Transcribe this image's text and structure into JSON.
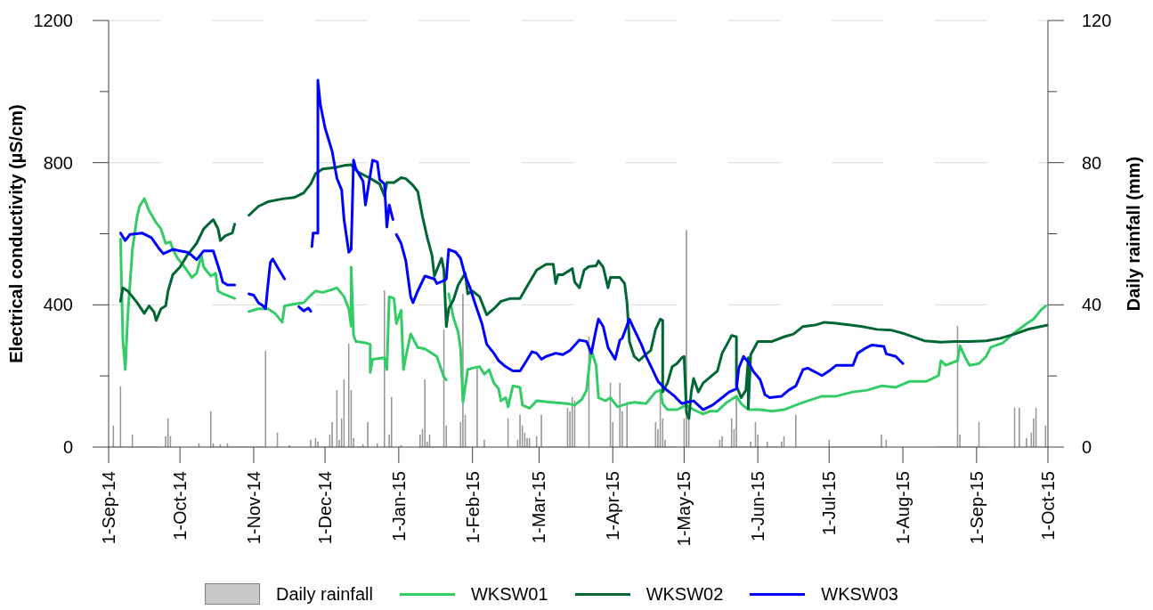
{
  "chart_data": {
    "type": "line",
    "xlim": [
      "2014-09-01",
      "2015-10-01"
    ],
    "xticks": [
      {
        "value": "2014-09-01",
        "label": "1-Sep-14"
      },
      {
        "value": "2014-10-01",
        "label": "1-Oct-14"
      },
      {
        "value": "2014-11-01",
        "label": "1-Nov-14"
      },
      {
        "value": "2014-12-01",
        "label": "1-Dec-14"
      },
      {
        "value": "2015-01-01",
        "label": "1-Jan-15"
      },
      {
        "value": "2015-02-01",
        "label": "1-Feb-15"
      },
      {
        "value": "2015-03-01",
        "label": "1-Mar-15"
      },
      {
        "value": "2015-04-01",
        "label": "1-Apr-15"
      },
      {
        "value": "2015-05-01",
        "label": "1-May-15"
      },
      {
        "value": "2015-06-01",
        "label": "1-Jun-15"
      },
      {
        "value": "2015-07-01",
        "label": "1-Jul-15"
      },
      {
        "value": "2015-08-01",
        "label": "1-Aug-15"
      },
      {
        "value": "2015-09-01",
        "label": "1-Sep-15"
      },
      {
        "value": "2015-10-01",
        "label": "1-Oct-15"
      }
    ],
    "ylabel": "Electrical conductivity (µS/cm)",
    "y2label": "Daily rainfall (mm)",
    "ylim": [
      0,
      1200
    ],
    "yticks": [
      0,
      {
        "value": 200,
        "label": null
      },
      400,
      {
        "value": 600,
        "label": null
      },
      800,
      {
        "value": 1000,
        "label": null
      },
      1200
    ],
    "y2lim": [
      0,
      120
    ],
    "y2ticks": [
      0,
      {
        "value": 20,
        "label": null
      },
      40,
      {
        "value": 60,
        "label": null
      },
      80,
      {
        "value": 100,
        "label": null
      },
      120
    ],
    "grid": "y",
    "legend": "bottom",
    "series": [
      {
        "name": "Daily rainfall",
        "type": "bar",
        "axis": "y2",
        "color": "#c8c8c8",
        "x": [
          "2014-09-03",
          "2014-09-06",
          "2014-09-11",
          "2014-09-25",
          "2014-09-26",
          "2014-09-27",
          "2014-10-09",
          "2014-10-14",
          "2014-10-15",
          "2014-10-18",
          "2014-10-21",
          "2014-11-06",
          "2014-11-11",
          "2014-11-16",
          "2014-11-25",
          "2014-11-27",
          "2014-11-28",
          "2014-12-03",
          "2014-12-04",
          "2014-12-06",
          "2014-12-07",
          "2014-12-08",
          "2014-12-09",
          "2014-12-11",
          "2014-12-12",
          "2014-12-13",
          "2014-12-17",
          "2014-12-19",
          "2014-12-23",
          "2014-12-26",
          "2014-12-28",
          "2014-12-29",
          "2015-01-02",
          "2015-01-10",
          "2015-01-11",
          "2015-01-12",
          "2015-01-13",
          "2015-01-14",
          "2015-01-20",
          "2015-01-21",
          "2015-01-27",
          "2015-01-28",
          "2015-01-29",
          "2015-02-03",
          "2015-02-06",
          "2015-02-16",
          "2015-02-20",
          "2015-02-21",
          "2015-02-22",
          "2015-02-23",
          "2015-02-24",
          "2015-02-25",
          "2015-02-28",
          "2015-03-02",
          "2015-03-13",
          "2015-03-14",
          "2015-03-15",
          "2015-03-16",
          "2015-03-22",
          "2015-03-31",
          "2015-04-01",
          "2015-04-04",
          "2015-04-05",
          "2015-04-07",
          "2015-04-19",
          "2015-04-20",
          "2015-04-21",
          "2015-04-22",
          "2015-04-23",
          "2015-05-01",
          "2015-05-02",
          "2015-05-03",
          "2015-05-16",
          "2015-05-17",
          "2015-05-21",
          "2015-05-22",
          "2015-05-23",
          "2015-05-29",
          "2015-05-31",
          "2015-06-01",
          "2015-06-05",
          "2015-06-11",
          "2015-06-12",
          "2015-06-17",
          "2015-07-01",
          "2015-07-23",
          "2015-07-25",
          "2015-08-24",
          "2015-08-25",
          "2015-09-02",
          "2015-09-17",
          "2015-09-19",
          "2015-09-22",
          "2015-09-24",
          "2015-09-25",
          "2015-09-26",
          "2015-09-30"
        ],
        "values": [
          6,
          17,
          3.5,
          3,
          8,
          3,
          1,
          10,
          1,
          0.7,
          1,
          27,
          4,
          0.5,
          2,
          2.5,
          1.5,
          3.5,
          7,
          16,
          2,
          8,
          19,
          29,
          16,
          2.5,
          0.7,
          7,
          1,
          44,
          3.5,
          14,
          0.5,
          3.5,
          5,
          19,
          1.5,
          3.5,
          33,
          6,
          7,
          43,
          9,
          22,
          2,
          8,
          2,
          9,
          6,
          4,
          2.5,
          2.5,
          3,
          9,
          11,
          10,
          14,
          13,
          31,
          18,
          7,
          18,
          10,
          12,
          7,
          5,
          16,
          8,
          2,
          8,
          61,
          8,
          2,
          3,
          8,
          5,
          14,
          1.5,
          7,
          3.5,
          1.5,
          1.5,
          3,
          9,
          2,
          3.5,
          2,
          34,
          3.5,
          7,
          11,
          11,
          2.5,
          4,
          8,
          11,
          6
        ]
      },
      {
        "name": "WKSW01",
        "color": "#33cc66",
        "x": [
          "2014-09-06",
          "2014-09-07",
          "2014-09-08",
          "2014-09-09",
          "2014-09-11",
          "2014-09-13",
          "2014-09-14",
          "2014-09-16",
          "2014-09-18",
          "2014-09-21",
          "2014-09-23",
          "2014-09-25",
          "2014-09-27",
          "2014-09-28",
          "2014-09-30",
          "2014-10-03",
          "2014-10-06",
          "2014-10-08",
          "2014-10-10",
          "2014-10-11",
          "2014-10-14",
          "2014-10-16",
          "2014-10-17",
          "2014-10-19",
          "2014-10-24",
          "2014-10-27",
          "2014-10-30",
          "2014-11-03",
          "2014-11-07",
          "2014-11-10",
          "2014-11-13",
          "2014-11-14",
          "2014-11-18",
          "2014-11-22",
          "2014-11-25",
          "2014-11-27",
          "2014-11-30",
          "2014-12-04",
          "2014-12-06",
          "2014-12-09",
          "2014-12-11",
          "2014-12-12",
          "2014-12-12",
          "2014-12-13",
          "2014-12-14",
          "2014-12-18",
          "2014-12-20",
          "2014-12-20",
          "2014-12-21",
          "2014-12-26",
          "2014-12-27",
          "2014-12-28",
          "2014-12-30",
          "2014-12-31",
          "2015-01-02",
          "2015-01-03",
          "2015-01-04",
          "2015-01-06",
          "2015-01-09",
          "2015-01-12",
          "2015-01-17",
          "2015-01-20",
          "2015-01-21",
          "2015-01-21T12:00",
          "2015-01-22",
          "2015-01-24",
          "2015-01-26",
          "2015-01-27",
          "2015-01-28",
          "2015-01-30",
          "2015-02-01",
          "2015-02-04",
          "2015-02-06",
          "2015-02-08",
          "2015-02-10",
          "2015-02-12",
          "2015-02-13",
          "2015-02-15",
          "2015-02-16",
          "2015-02-18",
          "2015-02-21",
          "2015-02-22",
          "2015-02-25",
          "2015-02-28",
          "2015-03-06",
          "2015-03-13",
          "2015-03-16",
          "2015-03-19",
          "2015-03-21",
          "2015-03-22",
          "2015-03-23",
          "2015-03-25",
          "2015-03-26",
          "2015-03-29",
          "2015-03-31",
          "2015-04-03",
          "2015-04-07",
          "2015-04-10",
          "2015-04-15",
          "2015-04-19",
          "2015-04-21",
          "2015-04-22",
          "2015-04-24",
          "2015-04-28",
          "2015-05-02",
          "2015-05-05",
          "2015-05-09",
          "2015-05-12",
          "2015-05-15",
          "2015-05-19",
          "2015-05-23",
          "2015-05-25",
          "2015-05-28",
          "2015-06-02",
          "2015-06-07",
          "2015-06-12",
          "2015-06-17",
          "2015-06-22",
          "2015-06-28",
          "2015-07-04",
          "2015-07-11",
          "2015-07-17",
          "2015-07-23",
          "2015-07-29",
          "2015-08-04",
          "2015-08-11",
          "2015-08-16",
          "2015-08-17",
          "2015-08-19",
          "2015-08-24",
          "2015-08-25",
          "2015-08-27",
          "2015-08-29",
          "2015-09-02",
          "2015-09-05",
          "2015-09-07",
          "2015-09-12",
          "2015-09-17",
          "2015-09-22",
          "2015-09-25",
          "2015-09-28",
          "2015-09-30"
        ],
        "values": [
          585,
          300,
          218,
          364,
          556,
          649,
          677,
          699,
          665,
          631,
          614,
          573,
          577,
          556,
          531,
          506,
          477,
          489,
          539,
          506,
          481,
          489,
          439,
          431,
          418,
          null,
          381,
          389,
          389,
          376,
          351,
          397,
          402,
          406,
          427,
          439,
          435,
          443,
          448,
          423,
          389,
          340,
          506,
          314,
          297,
          293,
          289,
          210,
          247,
          251,
          218,
          423,
          418,
          347,
          385,
          218,
          255,
          318,
          280,
          276,
          255,
          197,
          189,
          null,
          431,
          364,
          323,
          276,
          126,
          218,
          222,
          226,
          205,
          218,
          180,
          164,
          130,
          139,
          113,
          172,
          168,
          118,
          109,
          130,
          126,
          122,
          118,
          134,
          160,
          222,
          272,
          230,
          139,
          130,
          139,
          113,
          122,
          126,
          122,
          155,
          160,
          122,
          105,
          105,
          118,
          105,
          93,
          101,
          101,
          126,
          143,
          122,
          105,
          105,
          101,
          105,
          118,
          130,
          143,
          143,
          155,
          160,
          172,
          168,
          185,
          185,
          201,
          243,
          230,
          243,
          285,
          255,
          230,
          235,
          255,
          281,
          293,
          322,
          347,
          360,
          385,
          397
        ]
      },
      {
        "name": "WKSW02",
        "color": "#006633",
        "x": [
          "2014-09-06",
          "2014-09-07",
          "2014-09-09",
          "2014-09-11",
          "2014-09-13",
          "2014-09-16",
          "2014-09-18",
          "2014-09-20",
          "2014-09-21",
          "2014-09-23",
          "2014-09-25",
          "2014-09-26",
          "2014-09-28",
          "2014-10-01",
          "2014-10-04",
          "2014-10-08",
          "2014-10-11",
          "2014-10-15",
          "2014-10-17",
          "2014-10-18",
          "2014-10-20",
          "2014-10-23",
          "2014-10-24",
          "2014-10-27",
          "2014-10-30",
          "2014-11-03",
          "2014-11-07",
          "2014-11-13",
          "2014-11-18",
          "2014-11-22",
          "2014-11-25",
          "2014-11-27",
          "2014-11-30",
          "2014-12-05",
          "2014-12-09",
          "2014-12-12",
          "2014-12-15",
          "2014-12-20",
          "2014-12-24",
          "2014-12-26",
          "2014-12-27",
          "2014-12-30",
          "2015-01-02",
          "2015-01-04",
          "2015-01-07",
          "2015-01-09",
          "2015-01-11",
          "2015-01-13",
          "2015-01-15",
          "2015-01-16",
          "2015-01-17",
          "2015-01-19",
          "2015-01-20",
          "2015-01-21",
          "2015-01-22",
          "2015-01-24",
          "2015-01-26",
          "2015-01-29",
          "2015-01-30",
          "2015-02-01",
          "2015-02-04",
          "2015-02-07",
          "2015-02-10",
          "2015-02-13",
          "2015-02-17",
          "2015-02-21",
          "2015-02-25",
          "2015-02-28",
          "2015-03-04",
          "2015-03-07",
          "2015-03-08",
          "2015-03-09",
          "2015-03-11",
          "2015-03-15",
          "2015-03-16",
          "2015-03-18",
          "2015-03-20",
          "2015-03-22",
          "2015-03-25",
          "2015-03-26",
          "2015-03-28",
          "2015-03-30",
          "2015-03-31",
          "2015-04-04",
          "2015-04-06",
          "2015-04-07",
          "2015-04-08",
          "2015-04-10",
          "2015-04-12",
          "2015-04-14",
          "2015-04-17",
          "2015-04-19",
          "2015-04-21",
          "2015-04-22",
          "2015-04-22",
          "2015-04-24",
          "2015-04-26",
          "2015-04-28",
          "2015-04-30",
          "2015-05-01",
          "2015-05-02",
          "2015-05-03",
          "2015-05-04",
          "2015-05-05",
          "2015-05-07",
          "2015-05-09",
          "2015-05-12",
          "2015-05-15",
          "2015-05-17",
          "2015-05-20",
          "2015-05-21",
          "2015-05-23",
          "2015-05-23",
          "2015-05-25",
          "2015-05-27",
          "2015-05-28",
          "2015-05-28",
          "2015-05-29",
          "2015-06-01",
          "2015-06-07",
          "2015-06-12",
          "2015-06-16",
          "2015-06-20",
          "2015-06-25",
          "2015-06-29",
          "2015-07-03",
          "2015-07-10",
          "2015-07-15",
          "2015-07-21",
          "2015-07-27",
          "2015-08-02",
          "2015-08-10",
          "2015-08-17",
          "2015-08-23",
          "2015-08-29",
          "2015-09-05",
          "2015-09-11",
          "2015-09-17",
          "2015-09-23",
          "2015-10-01"
        ],
        "values": [
          410,
          448,
          439,
          423,
          406,
          376,
          397,
          381,
          356,
          389,
          397,
          439,
          485,
          506,
          539,
          573,
          614,
          640,
          614,
          581,
          594,
          602,
          627,
          null,
          652,
          677,
          690,
          698,
          702,
          715,
          740,
          769,
          782,
          786,
          792,
          794,
          773,
          756,
          740,
          706,
          744,
          744,
          758,
          755,
          736,
          719,
          648,
          589,
          539,
          481,
          498,
          531,
          498,
          339,
          389,
          414,
          456,
          489,
          431,
          439,
          423,
          372,
          389,
          410,
          418,
          418,
          464,
          498,
          514,
          514,
          460,
          485,
          485,
          502,
          464,
          448,
          498,
          508,
          510,
          524,
          506,
          448,
          477,
          477,
          460,
          406,
          297,
          255,
          243,
          255,
          272,
          331,
          360,
          356,
          155,
          180,
          226,
          235,
          251,
          255,
          97,
          80,
          155,
          193,
          155,
          180,
          197,
          214,
          264,
          301,
          314,
          310,
          172,
          139,
          160,
          251,
          109,
          260,
          297,
          297,
          310,
          318,
          339,
          343,
          351,
          349,
          343,
          339,
          331,
          329,
          318,
          299,
          295,
          297,
          297,
          299,
          306,
          318,
          332,
          343
        ]
      },
      {
        "name": "WKSW03",
        "color": "#0000ff",
        "x": [
          "2014-09-06",
          "2014-09-08",
          "2014-09-10",
          "2014-09-15",
          "2014-09-19",
          "2014-09-22",
          "2014-09-24",
          "2014-09-28",
          "2014-10-01",
          "2014-10-04",
          "2014-10-06",
          "2014-10-08",
          "2014-10-11",
          "2014-10-15",
          "2014-10-16",
          "2014-10-18",
          "2014-10-19",
          "2014-10-21",
          "2014-10-24",
          "2014-10-27",
          "2014-10-30",
          "2014-11-01",
          "2014-11-03",
          "2014-11-05",
          "2014-11-06",
          "2014-11-07",
          "2014-11-08",
          "2014-11-09",
          "2014-11-11",
          "2014-11-14",
          "2014-11-16",
          "2014-11-20",
          "2014-11-22",
          "2014-11-24",
          "2014-11-25",
          "2014-11-25T06:00",
          "2014-11-25T12:00",
          "2014-11-26",
          "2014-11-28",
          "2014-11-28",
          "2014-11-29",
          "2014-12-01",
          "2014-12-04",
          "2014-12-06",
          "2014-12-08",
          "2014-12-09",
          "2014-12-11",
          "2014-12-12",
          "2014-12-13",
          "2014-12-14",
          "2014-12-17",
          "2014-12-18",
          "2014-12-20",
          "2014-12-21",
          "2014-12-23",
          "2014-12-24",
          "2014-12-26",
          "2014-12-27",
          "2014-12-28",
          "2014-12-29T14:00",
          "2014-12-30T12:00",
          "2014-12-31",
          "2015-01-02",
          "2015-01-04",
          "2015-01-05",
          "2015-01-06",
          "2015-01-07",
          "2015-01-09",
          "2015-01-12",
          "2015-01-16",
          "2015-01-17",
          "2015-01-20",
          "2015-01-21",
          "2015-01-22",
          "2015-01-25",
          "2015-01-27",
          "2015-01-29",
          "2015-01-31",
          "2015-02-02",
          "2015-02-05",
          "2015-02-07",
          "2015-02-10",
          "2015-02-12",
          "2015-02-15",
          "2015-02-18",
          "2015-02-21",
          "2015-02-23",
          "2015-02-26",
          "2015-02-28",
          "2015-03-02",
          "2015-03-04",
          "2015-03-08",
          "2015-03-11",
          "2015-03-14",
          "2015-03-18",
          "2015-03-21",
          "2015-03-23",
          "2015-03-25",
          "2015-03-26",
          "2015-03-28",
          "2015-03-30",
          "2015-04-02",
          "2015-04-04",
          "2015-04-05",
          "2015-04-08",
          "2015-04-10",
          "2015-04-13",
          "2015-04-15",
          "2015-04-18",
          "2015-04-20",
          "2015-04-23",
          "2015-04-27",
          "2015-04-30",
          "2015-05-02",
          "2015-05-05",
          "2015-05-09",
          "2015-05-13",
          "2015-05-17",
          "2015-05-20",
          "2015-05-23",
          "2015-05-24",
          "2015-05-26",
          "2015-05-28",
          "2015-05-30",
          "2015-06-02",
          "2015-06-04",
          "2015-06-06",
          "2015-06-11",
          "2015-06-14",
          "2015-06-17",
          "2015-06-20",
          "2015-06-22",
          "2015-06-28",
          "2015-07-01",
          "2015-07-04",
          "2015-07-11",
          "2015-07-13",
          "2015-07-16",
          "2015-07-19",
          "2015-07-24",
          "2015-07-25",
          "2015-07-29",
          "2015-08-01"
        ],
        "values": [
          602,
          581,
          598,
          602,
          589,
          560,
          544,
          556,
          552,
          548,
          539,
          527,
          552,
          552,
          531,
          489,
          464,
          456,
          456,
          null,
          431,
          427,
          406,
          397,
          389,
          456,
          519,
          529,
          506,
          473,
          null,
          395,
          383,
          391,
          382,
          null,
          564,
          602,
          602,
          1032,
          965,
          898,
          832,
          756,
          723,
          640,
          548,
          556,
          807,
          782,
          748,
          681,
          765,
          807,
          802,
          752,
          740,
          619,
          681,
          640,
          null,
          598,
          573,
          523,
          473,
          423,
          406,
          439,
          481,
          473,
          460,
          468,
          473,
          556,
          548,
          531,
          481,
          448,
          406,
          347,
          289,
          264,
          243,
          226,
          214,
          214,
          235,
          268,
          264,
          247,
          255,
          264,
          260,
          272,
          301,
          297,
          264,
          331,
          360,
          339,
          280,
          247,
          301,
          306,
          360,
          331,
          289,
          255,
          214,
          185,
          164,
          143,
          122,
          126,
          130,
          105,
          118,
          139,
          155,
          164,
          222,
          255,
          239,
          214,
          189,
          147,
          139,
          143,
          160,
          172,
          218,
          222,
          201,
          214,
          230,
          230,
          264,
          277,
          287,
          283,
          262,
          255,
          235
        ]
      }
    ]
  }
}
